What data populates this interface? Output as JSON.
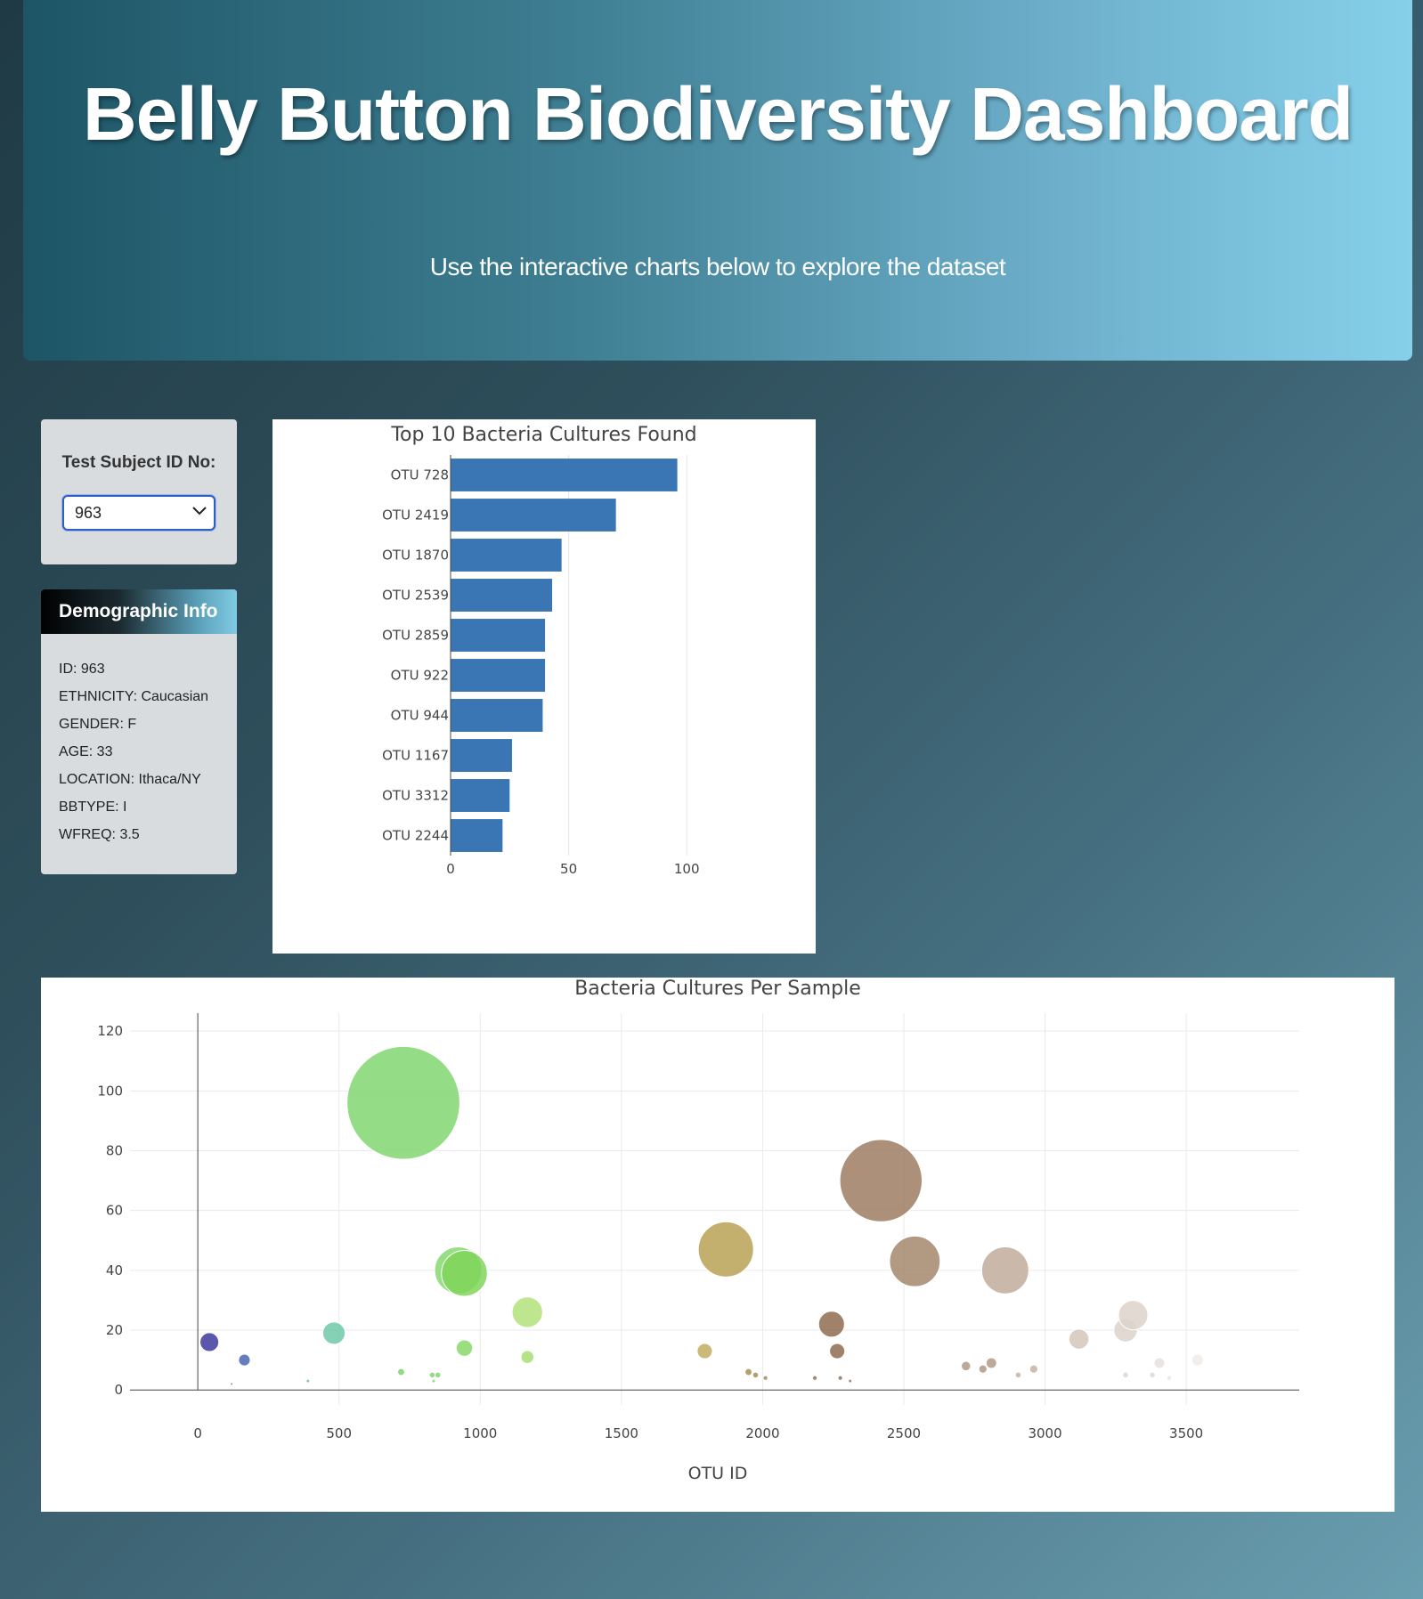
{
  "header": {
    "title": "Belly Button Biodiversity Dashboard",
    "subtitle": "Use the interactive charts below to explore the dataset"
  },
  "selector": {
    "label": "Test Subject ID No:",
    "value": "963"
  },
  "demographics": {
    "title": "Demographic Info",
    "rows": [
      "ID: 963",
      "ETHNICITY: Caucasian",
      "GENDER: F",
      "AGE: 33",
      "LOCATION: Ithaca/NY",
      "BBTYPE: I",
      "WFREQ: 3.5"
    ]
  },
  "colors": {
    "bar": "#3a76b4",
    "accent": "#2f5fc0"
  },
  "chart_data": [
    {
      "type": "bar",
      "orientation": "horizontal",
      "title": "Top 10 Bacteria Cultures Found",
      "categories": [
        "OTU 728",
        "OTU 2419",
        "OTU 1870",
        "OTU 2539",
        "OTU 2859",
        "OTU 922",
        "OTU 944",
        "OTU 1167",
        "OTU 3312",
        "OTU 2244"
      ],
      "values": [
        96,
        70,
        47,
        43,
        40,
        40,
        39,
        26,
        25,
        22
      ],
      "xlim": [
        0,
        115
      ],
      "xticks": [
        0,
        50,
        100
      ],
      "xlabel": "",
      "ylabel": "",
      "grid": true
    },
    {
      "type": "scatter",
      "title": "Bacteria Cultures Per Sample",
      "xlabel": "OTU ID",
      "ylabel": "",
      "xlim": [
        -240,
        3900
      ],
      "ylim": [
        -5,
        126
      ],
      "xticks": [
        0,
        500,
        1000,
        1500,
        2000,
        2500,
        3000,
        3500
      ],
      "yticks": [
        0,
        20,
        40,
        60,
        80,
        100,
        120
      ],
      "grid": true,
      "points": [
        {
          "x": 41,
          "y": 16,
          "color": "#3d3a9e"
        },
        {
          "x": 165,
          "y": 10,
          "color": "#4a66b0"
        },
        {
          "x": 482,
          "y": 19,
          "color": "#6fc9a8"
        },
        {
          "x": 728,
          "y": 96,
          "color": "#82d672"
        },
        {
          "x": 720,
          "y": 6,
          "color": "#7ed46e"
        },
        {
          "x": 830,
          "y": 5,
          "color": "#82d672"
        },
        {
          "x": 850,
          "y": 5,
          "color": "#82d672"
        },
        {
          "x": 922,
          "y": 40,
          "color": "#86d870"
        },
        {
          "x": 944,
          "y": 39,
          "color": "#7fd65a"
        },
        {
          "x": 944,
          "y": 14,
          "color": "#8ad86a"
        },
        {
          "x": 1167,
          "y": 26,
          "color": "#b3e27a"
        },
        {
          "x": 1167,
          "y": 11,
          "color": "#a8de74"
        },
        {
          "x": 1795,
          "y": 13,
          "color": "#c2ad5f"
        },
        {
          "x": 1870,
          "y": 47,
          "color": "#b9a256"
        },
        {
          "x": 1950,
          "y": 6,
          "color": "#a89057"
        },
        {
          "x": 1975,
          "y": 5,
          "color": "#a89057"
        },
        {
          "x": 2010,
          "y": 4,
          "color": "#9d8a5a"
        },
        {
          "x": 2185,
          "y": 4,
          "color": "#8c7660"
        },
        {
          "x": 2244,
          "y": 22,
          "color": "#8f6b4f"
        },
        {
          "x": 2264,
          "y": 13,
          "color": "#8f6b4f"
        },
        {
          "x": 2275,
          "y": 4,
          "color": "#8c7660"
        },
        {
          "x": 2310,
          "y": 3,
          "color": "#8c7660"
        },
        {
          "x": 2419,
          "y": 70,
          "color": "#9d7c61"
        },
        {
          "x": 2539,
          "y": 43,
          "color": "#a4876c"
        },
        {
          "x": 2720,
          "y": 8,
          "color": "#b39a86"
        },
        {
          "x": 2780,
          "y": 7,
          "color": "#b39a86"
        },
        {
          "x": 2810,
          "y": 9,
          "color": "#b39a86"
        },
        {
          "x": 2859,
          "y": 40,
          "color": "#c1ad9c"
        },
        {
          "x": 2905,
          "y": 5,
          "color": "#c6b4a5"
        },
        {
          "x": 2960,
          "y": 7,
          "color": "#c6b4a5"
        },
        {
          "x": 3120,
          "y": 17,
          "color": "#d3c6bb"
        },
        {
          "x": 3285,
          "y": 20,
          "color": "#dcd2ca"
        },
        {
          "x": 3312,
          "y": 25,
          "color": "#dcd2ca"
        },
        {
          "x": 3285,
          "y": 5,
          "color": "#ded6d0"
        },
        {
          "x": 3380,
          "y": 5,
          "color": "#e2dbd6"
        },
        {
          "x": 3405,
          "y": 9,
          "color": "#e6e0dc"
        },
        {
          "x": 3440,
          "y": 4,
          "color": "#e8e3df"
        },
        {
          "x": 3540,
          "y": 10,
          "color": "#efebe9"
        },
        {
          "x": 120,
          "y": 2,
          "color": "#4a8fb0"
        },
        {
          "x": 390,
          "y": 3,
          "color": "#5fbfa8"
        },
        {
          "x": 835,
          "y": 3,
          "color": "#82d672"
        }
      ]
    }
  ]
}
